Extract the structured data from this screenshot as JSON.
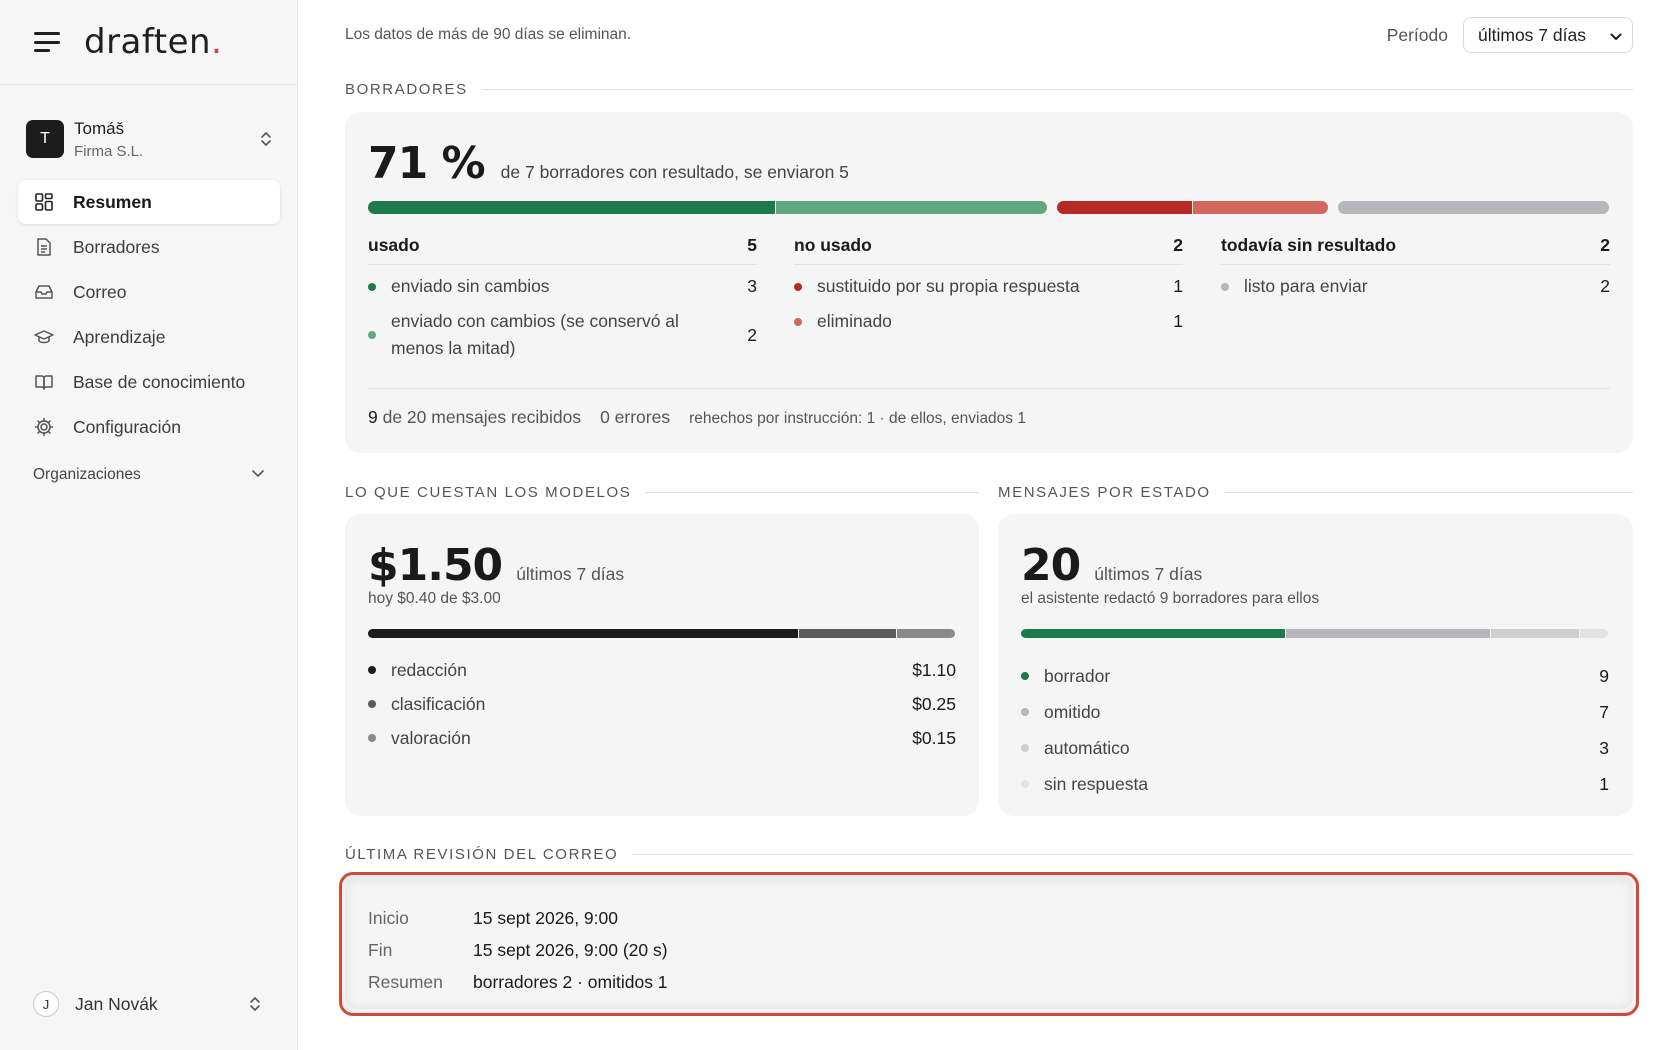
{
  "app": {
    "logo_text": "draften",
    "logo_dot": ".",
    "accent": "#d6402b"
  },
  "account": {
    "initial": "T",
    "name": "Tomáš",
    "org": "Firma S.L."
  },
  "nav": {
    "items": [
      {
        "label": "Resumen",
        "icon": "dashboard-icon",
        "active": true
      },
      {
        "label": "Borradores",
        "icon": "document-icon",
        "active": false
      },
      {
        "label": "Correo",
        "icon": "inbox-icon",
        "active": false
      },
      {
        "label": "Aprendizaje",
        "icon": "graduation-cap-icon",
        "active": false
      },
      {
        "label": "Base de conocimiento",
        "icon": "book-icon",
        "active": false
      },
      {
        "label": "Configuración",
        "icon": "gear-icon",
        "active": false
      }
    ],
    "organizations_label": "Organizaciones"
  },
  "user": {
    "initial": "J",
    "name": "Jan Novák"
  },
  "topbar": {
    "retention_note": "Los datos de más de 90 días se eliminan.",
    "period_label": "Período",
    "period_value": "últimos 7 días"
  },
  "drafts": {
    "section_title": "BORRADORES",
    "rate": "71 %",
    "summary": "de 7 borradores con resultado, se enviaron 5",
    "progress": [
      {
        "name": "enviado sin cambios",
        "value": 3,
        "color": "#1e7a4a"
      },
      {
        "name": "enviado con cambios",
        "value": 2,
        "color": "#5fa97e"
      },
      {
        "name": "sustituido",
        "value": 1,
        "color": "#b52a22"
      },
      {
        "name": "eliminado",
        "value": 1,
        "color": "#d4675d"
      },
      {
        "name": "listo para enviar",
        "value": 2,
        "color": "#b6b6bb"
      }
    ],
    "columns": [
      {
        "title": "usado",
        "count": "5",
        "rows": [
          {
            "label": "enviado sin cambios",
            "value": "3",
            "color": "#1e7a4a"
          },
          {
            "label": "enviado con cambios (se conservó al menos la mitad)",
            "value": "2",
            "color": "#5fa97e"
          }
        ]
      },
      {
        "title": "no usado",
        "count": "2",
        "rows": [
          {
            "label": "sustituido por su propia respuesta",
            "value": "1",
            "color": "#b52a22"
          },
          {
            "label": "eliminado",
            "value": "1",
            "color": "#d4675d"
          }
        ]
      },
      {
        "title": "todavía sin resultado",
        "count": "2",
        "rows": [
          {
            "label": "listo para enviar",
            "value": "2",
            "color": "#b6b6bb"
          }
        ]
      }
    ],
    "footer": {
      "received_count": "9",
      "received_text": "de 20 mensajes recibidos",
      "errors": "0 errores",
      "redo": "rehechos por instrucción: 1 · de ellos, enviados 1"
    }
  },
  "costs": {
    "section_title": "LO QUE CUESTAN LOS MODELOS",
    "total": "$1.50",
    "period": "últimos 7 días",
    "today": "hoy $0.40 de $3.00",
    "items": [
      {
        "label": "redacción",
        "value": "$1.10",
        "amount": 1.1,
        "color": "#1c1c1c"
      },
      {
        "label": "clasificación",
        "value": "$0.25",
        "amount": 0.25,
        "color": "#5c5c5c"
      },
      {
        "label": "valoración",
        "value": "$0.15",
        "amount": 0.15,
        "color": "#8a8a8a"
      }
    ]
  },
  "messages": {
    "section_title": "MENSAJES POR ESTADO",
    "total": "20",
    "period": "últimos 7 días",
    "note": "el asistente redactó 9 borradores para ellos",
    "items": [
      {
        "label": "borrador",
        "value": "9",
        "amount": 9,
        "color": "#1e7a4a"
      },
      {
        "label": "omitido",
        "value": "7",
        "amount": 7,
        "color": "#b6b6bb"
      },
      {
        "label": "automático",
        "value": "3",
        "amount": 3,
        "color": "#cfcfd2"
      },
      {
        "label": "sin respuesta",
        "value": "1",
        "amount": 1,
        "color": "#e3e3e3"
      }
    ]
  },
  "review": {
    "section_title": "ÚLTIMA REVISIÓN DEL CORREO",
    "rows": [
      {
        "key": "Inicio",
        "value": "15 sept 2026, 9:00"
      },
      {
        "key": "Fin",
        "value": "15 sept 2026, 9:00 (20 s)"
      },
      {
        "key": "Resumen",
        "value": "borradores 2 · omitidos 1"
      }
    ],
    "highlight_color": "#d4483a"
  }
}
